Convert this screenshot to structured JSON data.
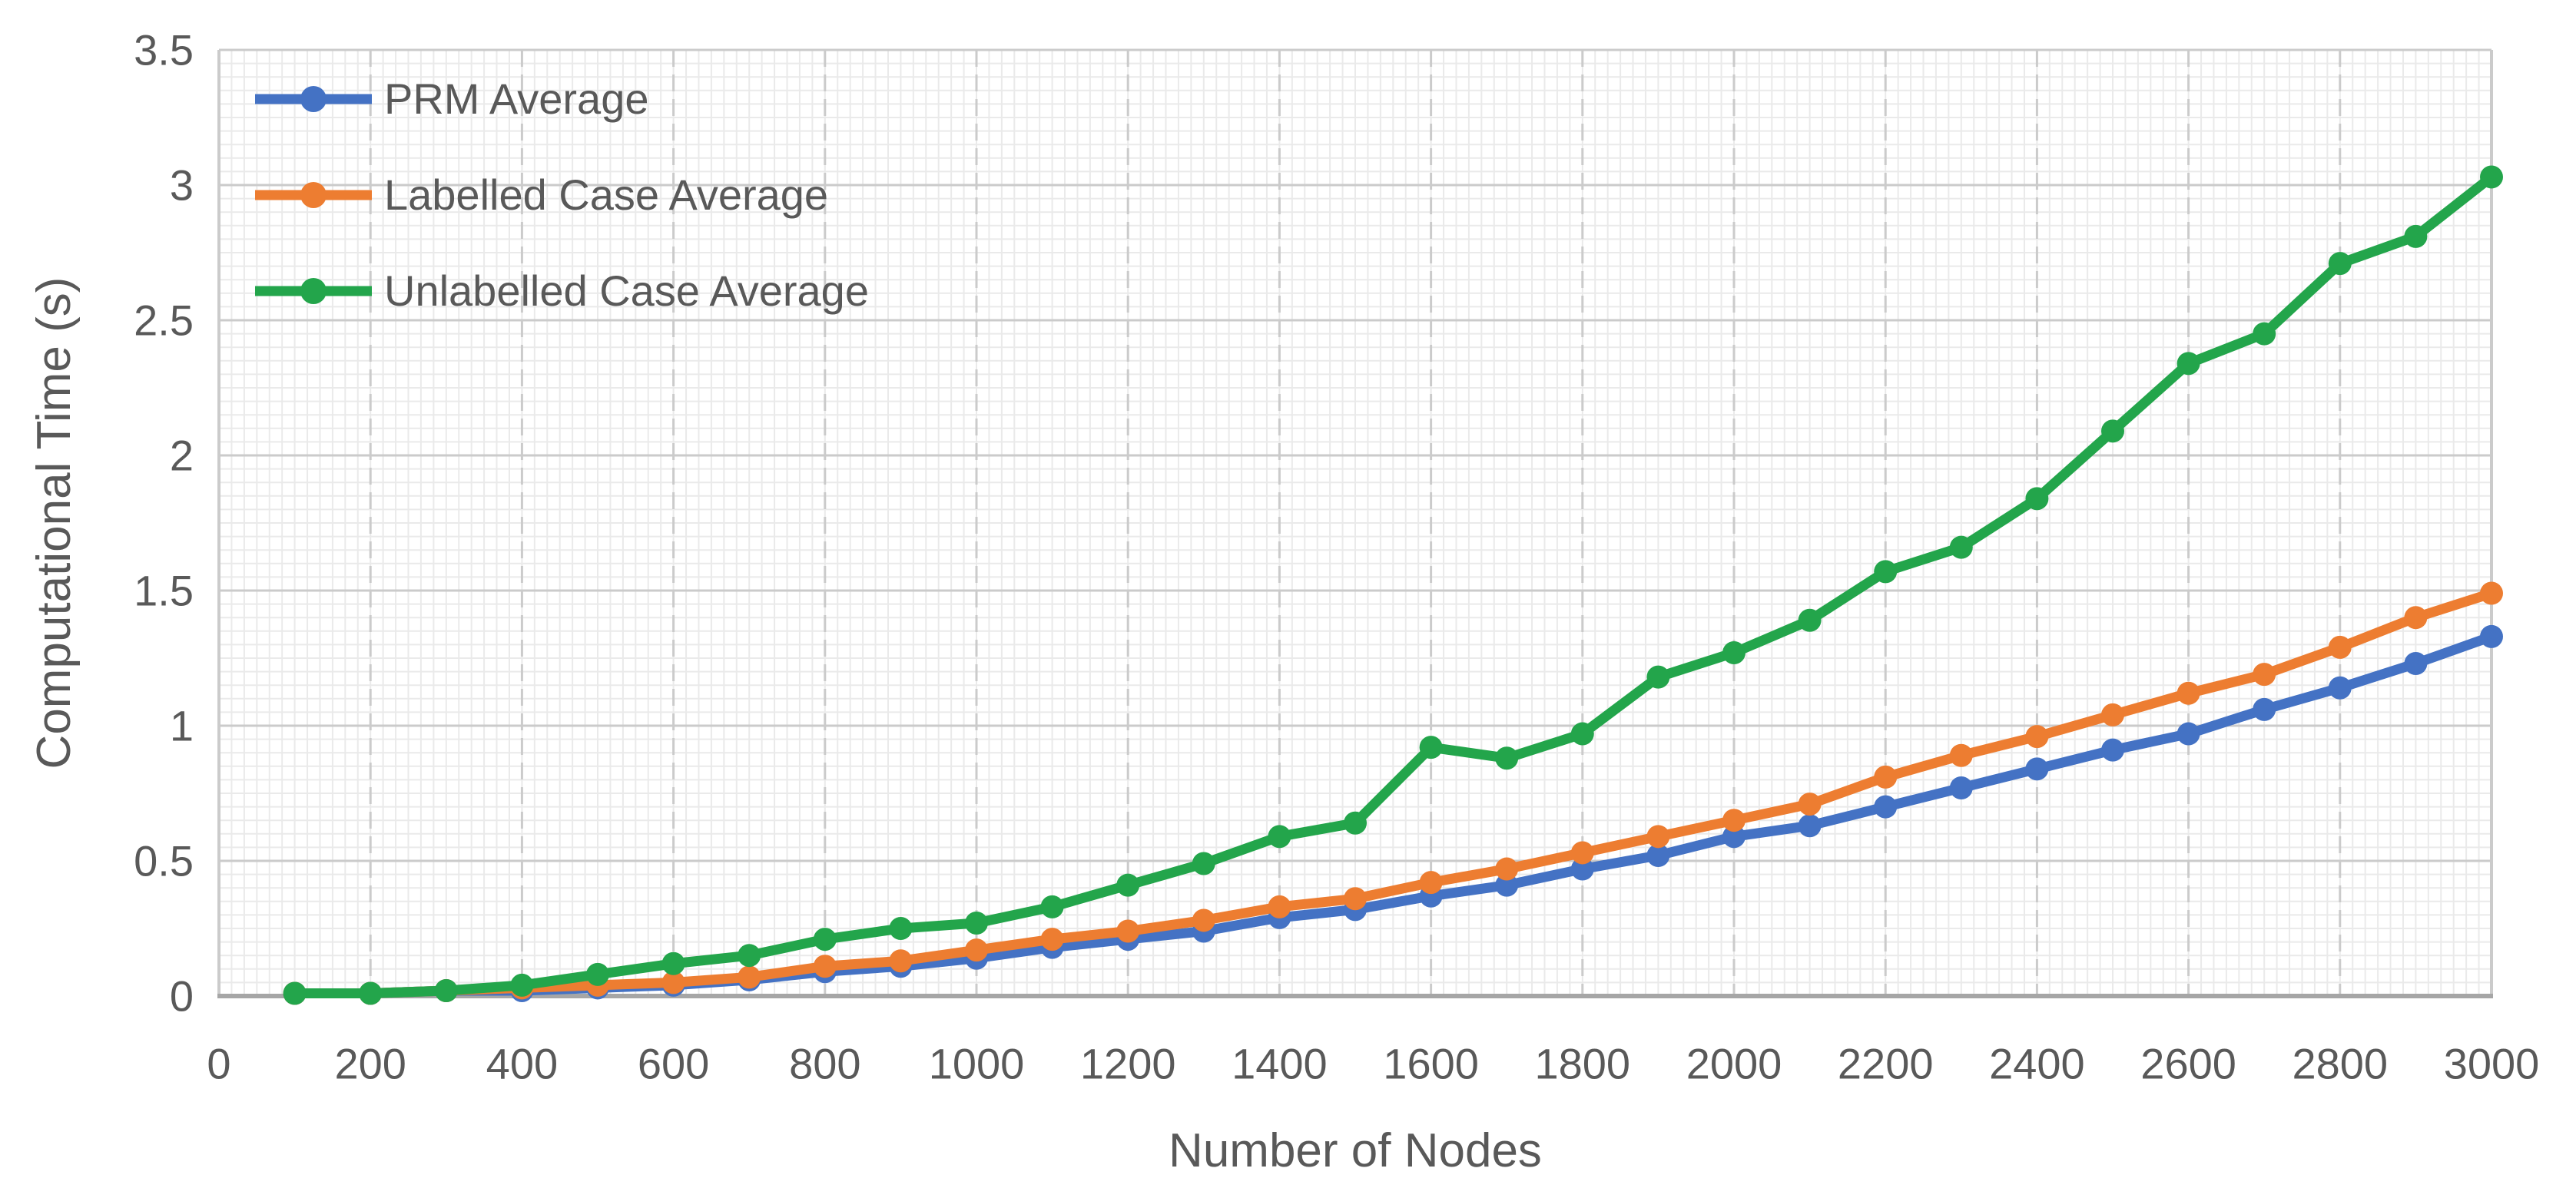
{
  "chart_data": {
    "type": "line",
    "title": "",
    "xlabel": "Number of Nodes",
    "ylabel": "Computational Time (s)",
    "x": [
      100,
      200,
      300,
      400,
      500,
      600,
      700,
      800,
      900,
      1000,
      1100,
      1200,
      1300,
      1400,
      1500,
      1600,
      1700,
      1800,
      1900,
      2000,
      2100,
      2200,
      2300,
      2400,
      2500,
      2600,
      2700,
      2800,
      2900,
      3000
    ],
    "series": [
      {
        "name": "PRM Average",
        "color": "#4472C4",
        "values": [
          0.01,
          0.01,
          0.02,
          0.02,
          0.03,
          0.04,
          0.06,
          0.09,
          0.11,
          0.14,
          0.18,
          0.21,
          0.24,
          0.29,
          0.32,
          0.37,
          0.41,
          0.47,
          0.52,
          0.59,
          0.63,
          0.7,
          0.77,
          0.84,
          0.91,
          0.97,
          1.06,
          1.14,
          1.23,
          1.33
        ]
      },
      {
        "name": "Labelled Case Average",
        "color": "#ED7D31",
        "values": [
          0.01,
          0.01,
          0.02,
          0.03,
          0.04,
          0.05,
          0.07,
          0.11,
          0.13,
          0.17,
          0.21,
          0.24,
          0.28,
          0.33,
          0.36,
          0.42,
          0.47,
          0.53,
          0.59,
          0.65,
          0.71,
          0.81,
          0.89,
          0.96,
          1.04,
          1.12,
          1.19,
          1.29,
          1.4,
          1.49
        ]
      },
      {
        "name": "Unlabelled Case Average",
        "color": "#23A54B",
        "values": [
          0.01,
          0.01,
          0.02,
          0.04,
          0.08,
          0.12,
          0.15,
          0.21,
          0.25,
          0.27,
          0.33,
          0.41,
          0.49,
          0.59,
          0.64,
          0.92,
          0.88,
          0.97,
          1.18,
          1.27,
          1.39,
          1.57,
          1.66,
          1.84,
          2.09,
          2.34,
          2.45,
          2.71,
          2.81,
          3.03
        ]
      }
    ],
    "xlim": [
      0,
      3000
    ],
    "ylim": [
      0,
      3.5
    ],
    "x_ticks": [
      0,
      200,
      400,
      600,
      800,
      1000,
      1200,
      1400,
      1600,
      1800,
      2000,
      2200,
      2400,
      2600,
      2800,
      3000
    ],
    "y_ticks": [
      0,
      0.5,
      1,
      1.5,
      2,
      2.5,
      3,
      3.5
    ],
    "y_tick_labels": [
      "0",
      "0.5",
      "1",
      "1.5",
      "2",
      "2.5",
      "3",
      "3.5"
    ],
    "grid": {
      "major": true,
      "minor": true
    },
    "legend_position": "top-left",
    "marker": "circle"
  },
  "styles": {
    "background": "#FFFFFF",
    "axis_text_color": "#595959",
    "major_grid_color": "#CBCBCB",
    "minor_grid_color": "#EAEAEA",
    "axis_line_color": "#A6A6A6"
  }
}
